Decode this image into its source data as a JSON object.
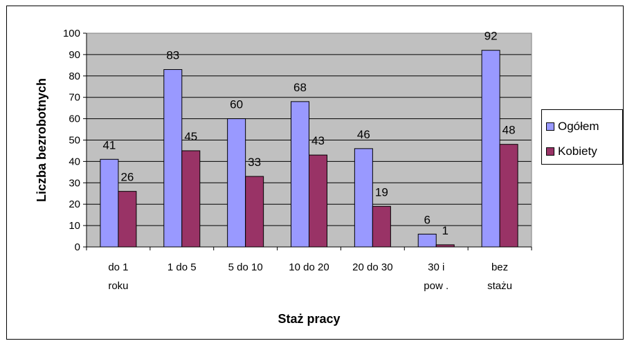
{
  "chart_data": {
    "type": "bar",
    "categories": [
      [
        "do 1",
        "roku"
      ],
      [
        "1 do 5"
      ],
      [
        "5 do 10"
      ],
      [
        "10 do 20"
      ],
      [
        "20 do 30"
      ],
      [
        "30 i",
        "pow ."
      ],
      [
        "bez",
        "stażu"
      ]
    ],
    "series": [
      {
        "name": "Ogółem",
        "values": [
          41,
          83,
          60,
          68,
          46,
          6,
          92
        ],
        "color": "#9999ff"
      },
      {
        "name": "Kobiety",
        "values": [
          26,
          45,
          33,
          43,
          19,
          1,
          48
        ],
        "color": "#993366"
      }
    ],
    "title": "",
    "xlabel": "Staż pracy",
    "ylabel": "Liczba bezrobotnych",
    "ylim": [
      0,
      100
    ],
    "yticks": [
      "0",
      "10",
      "20",
      "30",
      "40",
      "50",
      "60",
      "70",
      "80",
      "90",
      "100"
    ],
    "grid": true,
    "plot_background": "#c0c0c0",
    "legend": "right"
  }
}
